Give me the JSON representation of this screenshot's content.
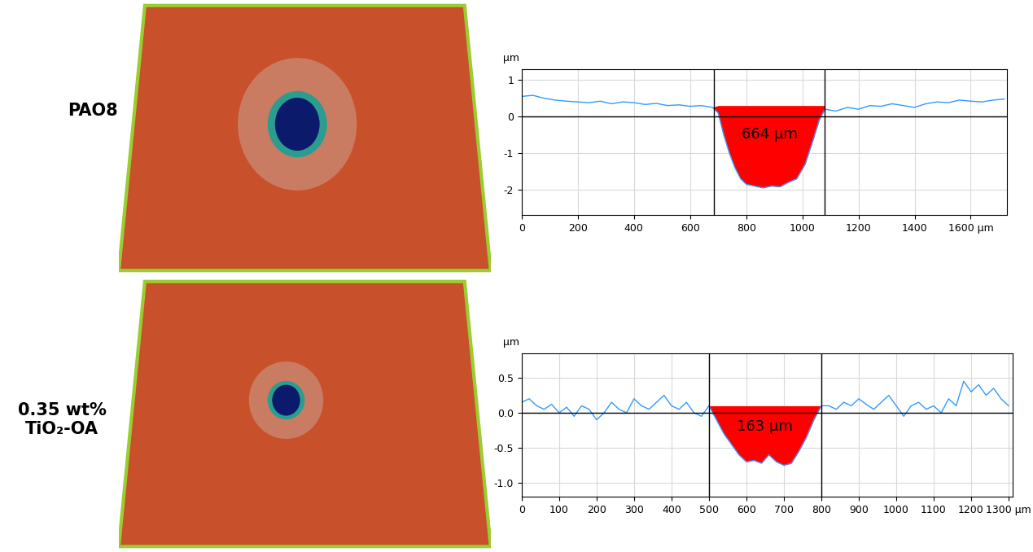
{
  "row_labels": [
    "PAO8",
    "0.35 wt%\nTiO₂-OA"
  ],
  "chart_data": [
    {
      "type": "line",
      "ylabel": "μm",
      "annotation": "664 μm",
      "x": [
        0,
        40,
        80,
        120,
        160,
        200,
        240,
        280,
        320,
        360,
        400,
        440,
        480,
        520,
        560,
        600,
        640,
        680,
        700,
        720,
        740,
        760,
        780,
        800,
        830,
        860,
        890,
        920,
        950,
        980,
        1010,
        1040,
        1060,
        1080,
        1120,
        1160,
        1200,
        1240,
        1280,
        1320,
        1360,
        1400,
        1440,
        1480,
        1520,
        1560,
        1600,
        1640,
        1680,
        1720
      ],
      "values": [
        0.55,
        0.58,
        0.5,
        0.45,
        0.42,
        0.4,
        0.38,
        0.42,
        0.35,
        0.4,
        0.38,
        0.33,
        0.36,
        0.3,
        0.32,
        0.28,
        0.3,
        0.25,
        0.1,
        -0.5,
        -1.0,
        -1.4,
        -1.7,
        -1.85,
        -1.9,
        -1.95,
        -1.9,
        -1.92,
        -1.8,
        -1.7,
        -1.3,
        -0.6,
        -0.1,
        0.2,
        0.15,
        0.25,
        0.2,
        0.3,
        0.28,
        0.35,
        0.3,
        0.25,
        0.35,
        0.4,
        0.38,
        0.45,
        0.42,
        0.4,
        0.45,
        0.48
      ],
      "color": "#3399ff",
      "cursor_x": [
        685,
        1080
      ],
      "fill_level": 0.3,
      "xlim": [
        0,
        1730
      ],
      "ylim": [
        -2.7,
        1.3
      ],
      "xticks": [
        0,
        200,
        400,
        600,
        800,
        1000,
        1200,
        1400,
        {
          "value": 1600,
          "label": "1600 μm"
        }
      ],
      "yticks": [
        -2,
        -1,
        0,
        1
      ],
      "grid": true
    },
    {
      "type": "line",
      "ylabel": "μm",
      "annotation": "163 μm",
      "x": [
        0,
        20,
        40,
        60,
        80,
        100,
        120,
        140,
        160,
        180,
        200,
        220,
        240,
        260,
        280,
        300,
        320,
        340,
        360,
        380,
        400,
        420,
        440,
        460,
        480,
        500,
        520,
        540,
        560,
        580,
        600,
        620,
        640,
        660,
        680,
        700,
        720,
        740,
        760,
        780,
        800,
        820,
        840,
        860,
        880,
        900,
        920,
        940,
        960,
        980,
        1000,
        1020,
        1040,
        1060,
        1080,
        1100,
        1120,
        1140,
        1160,
        1180,
        1200,
        1220,
        1240,
        1260,
        1280,
        1300
      ],
      "values": [
        0.15,
        0.2,
        0.1,
        0.05,
        0.12,
        0.0,
        0.08,
        -0.05,
        0.1,
        0.05,
        -0.1,
        0.0,
        0.15,
        0.05,
        0.0,
        0.2,
        0.1,
        0.05,
        0.15,
        0.25,
        0.1,
        0.05,
        0.15,
        0.0,
        -0.05,
        0.1,
        -0.1,
        -0.3,
        -0.45,
        -0.6,
        -0.7,
        -0.68,
        -0.72,
        -0.6,
        -0.7,
        -0.75,
        -0.72,
        -0.55,
        -0.35,
        -0.1,
        0.1,
        0.1,
        0.05,
        0.15,
        0.1,
        0.2,
        0.12,
        0.05,
        0.15,
        0.25,
        0.1,
        -0.05,
        0.1,
        0.15,
        0.05,
        0.1,
        0.0,
        0.2,
        0.1,
        0.45,
        0.3,
        0.4,
        0.25,
        0.35,
        0.2,
        0.1
      ],
      "color": "#3399ff",
      "cursor_x": [
        500,
        800
      ],
      "fill_level": 0.1,
      "xlim": [
        0,
        1310
      ],
      "ylim": [
        -1.2,
        0.85
      ],
      "xticks": [
        0,
        100,
        200,
        300,
        400,
        500,
        600,
        700,
        800,
        900,
        1000,
        1100,
        1200,
        {
          "value": 1300,
          "label": "1300 μm"
        }
      ],
      "yticks": [
        -1.0,
        -0.5,
        0.0,
        0.5
      ],
      "grid": true
    }
  ]
}
